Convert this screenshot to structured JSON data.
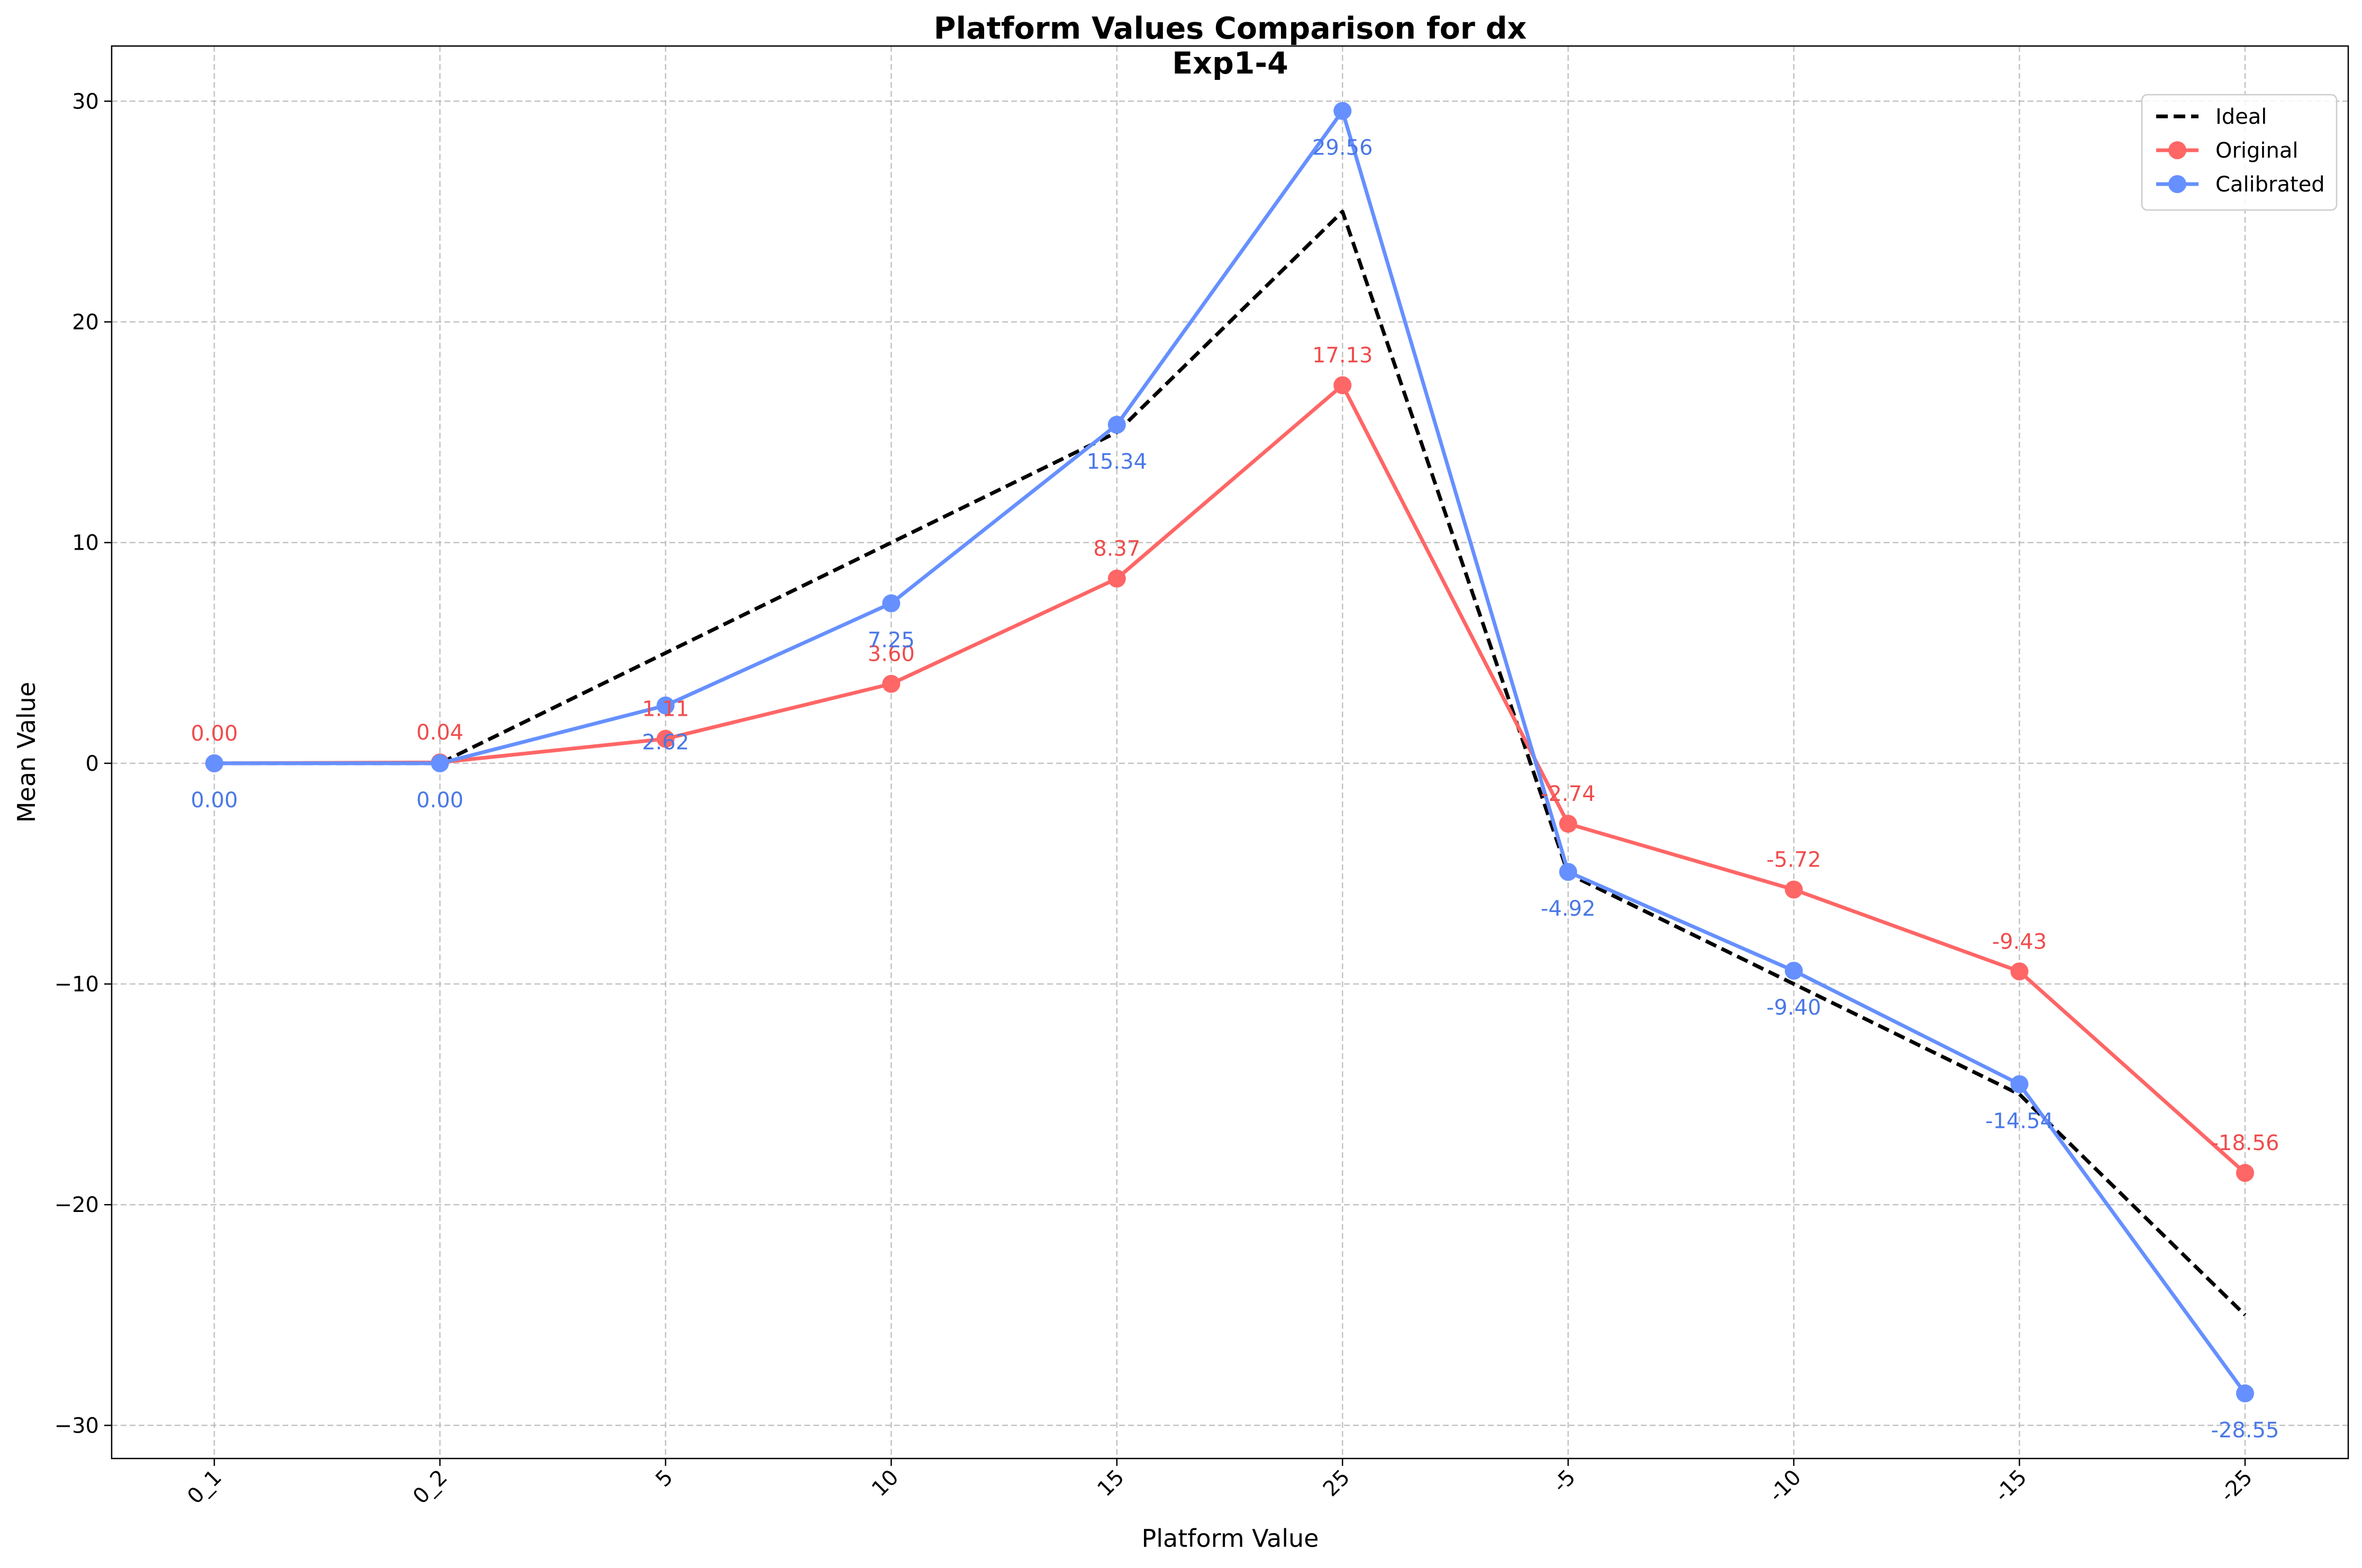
{
  "chart_data": {
    "type": "line",
    "title": "Platform Values Comparison for dx",
    "subtitle": "Exp1-4",
    "xlabel": "Platform Value",
    "ylabel": "Mean Value",
    "categories": [
      "0_1",
      "0_2",
      "5",
      "10",
      "15",
      "25",
      "-5",
      "-10",
      "-15",
      "-25"
    ],
    "ylim": [
      -31.5,
      32.5
    ],
    "yticks": [
      -30,
      -20,
      -10,
      0,
      10,
      20,
      30
    ],
    "ytick_labels": [
      "−30",
      "−20",
      "−10",
      "0",
      "10",
      "20",
      "30"
    ],
    "grid": true,
    "legend_position": "top-right",
    "series": [
      {
        "name": "Ideal",
        "color": "#000000",
        "style": "dashed",
        "markers": false,
        "values": [
          0,
          0,
          5,
          10,
          15,
          25,
          -5,
          -10,
          -15,
          -25
        ]
      },
      {
        "name": "Original",
        "color": "#ff6666",
        "label_color": "#f04c4c",
        "style": "solid",
        "markers": true,
        "values": [
          0.0,
          0.04,
          1.11,
          3.6,
          8.37,
          17.13,
          -2.74,
          -5.72,
          -9.43,
          -18.56
        ],
        "labels": [
          "0.00",
          "0.04",
          "1.11",
          "3.60",
          "8.37",
          "17.13",
          "-2.74",
          "-5.72",
          "-9.43",
          "-18.56"
        ],
        "label_position": "above"
      },
      {
        "name": "Calibrated",
        "color": "#6690ff",
        "label_color": "#4a78e6",
        "style": "solid",
        "markers": true,
        "values": [
          0.0,
          0.0,
          2.62,
          7.25,
          15.34,
          29.56,
          -4.92,
          -9.4,
          -14.54,
          -28.55
        ],
        "labels": [
          "0.00",
          "0.00",
          "2.62",
          "7.25",
          "15.34",
          "29.56",
          "-4.92",
          "-9.40",
          "-14.54",
          "-28.55"
        ],
        "label_position": "below"
      }
    ]
  }
}
